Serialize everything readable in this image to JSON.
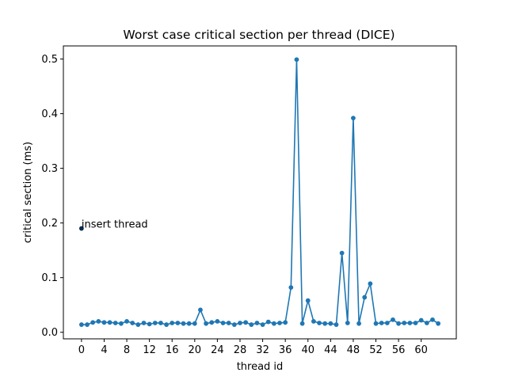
{
  "chart_data": {
    "type": "line",
    "title": "Worst case critical section per thread (DICE)",
    "xlabel": "thread id",
    "ylabel": "critical section (ms)",
    "xlim": [
      -3.2,
      66.2
    ],
    "ylim": [
      -0.012,
      0.524
    ],
    "xticks": [
      0,
      4,
      8,
      12,
      16,
      20,
      24,
      28,
      32,
      36,
      40,
      44,
      48,
      52,
      56,
      60
    ],
    "yticks": [
      0.0,
      0.1,
      0.2,
      0.3,
      0.4,
      0.5
    ],
    "ytick_labels": [
      "0.0",
      "0.1",
      "0.2",
      "0.3",
      "0.4",
      "0.5"
    ],
    "grid": false,
    "legend": "none",
    "series": [
      {
        "color": "#1f77b4",
        "marker": "circle",
        "x": [
          0,
          1,
          2,
          3,
          4,
          5,
          6,
          7,
          8,
          9,
          10,
          11,
          12,
          13,
          14,
          15,
          16,
          17,
          18,
          19,
          20,
          21,
          22,
          23,
          24,
          25,
          26,
          27,
          28,
          29,
          30,
          31,
          32,
          33,
          34,
          35,
          36,
          37,
          38,
          39,
          40,
          41,
          42,
          43,
          44,
          45,
          46,
          47,
          48,
          49,
          50,
          51,
          52,
          53,
          54,
          55,
          56,
          57,
          58,
          59,
          60,
          61,
          62,
          63
        ],
        "y": [
          0.014,
          0.014,
          0.018,
          0.02,
          0.018,
          0.018,
          0.017,
          0.016,
          0.02,
          0.017,
          0.014,
          0.017,
          0.015,
          0.017,
          0.017,
          0.014,
          0.017,
          0.017,
          0.016,
          0.016,
          0.016,
          0.041,
          0.016,
          0.018,
          0.02,
          0.017,
          0.017,
          0.014,
          0.017,
          0.018,
          0.014,
          0.017,
          0.014,
          0.019,
          0.016,
          0.017,
          0.018,
          0.082,
          0.499,
          0.016,
          0.058,
          0.02,
          0.017,
          0.016,
          0.016,
          0.014,
          0.145,
          0.017,
          0.392,
          0.016,
          0.064,
          0.089,
          0.016,
          0.017,
          0.017,
          0.023,
          0.016,
          0.017,
          0.017,
          0.017,
          0.022,
          0.017,
          0.023,
          0.016
        ]
      },
      {
        "color": "#0b2a4e",
        "marker": "circle",
        "x": [
          0
        ],
        "y": [
          0.19
        ]
      }
    ],
    "annotations": [
      {
        "text": "insert thread",
        "x": 0,
        "y": 0.19
      }
    ]
  }
}
